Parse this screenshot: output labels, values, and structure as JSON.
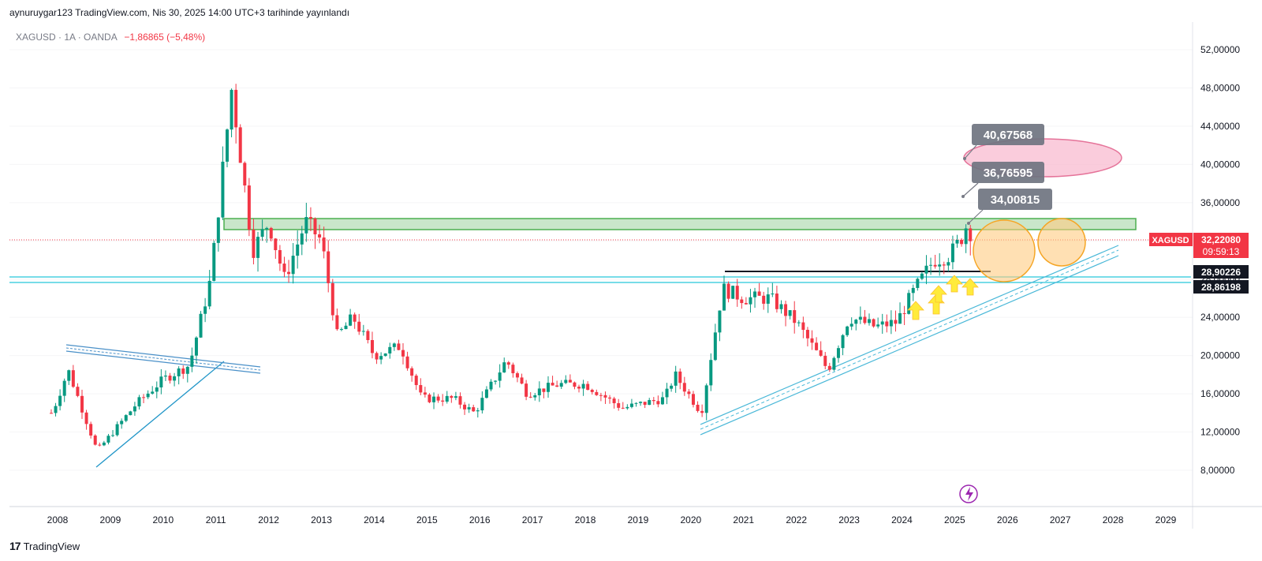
{
  "header": {
    "publish_line": "aynuruygar123 TradingView.com, Nis 30, 2025 14:00 UTC+3 tarihinde yayınlandı"
  },
  "symbol": {
    "name": "XAGUSD · 1A · OANDA",
    "change": "−1,86865 (−5,48%)"
  },
  "footer": {
    "brand": "TradingView"
  },
  "chart_data": {
    "type": "candlestick",
    "symbol": "XAGUSD",
    "y_ticks": [
      "8,00000",
      "12,00000",
      "16,00000",
      "20,00000",
      "24,00000",
      "28,00000",
      "32,00000",
      "36,00000",
      "40,00000",
      "44,00000",
      "48,00000",
      "52,00000"
    ],
    "x_ticks": [
      "2008",
      "2009",
      "2010",
      "2011",
      "2012",
      "2013",
      "2014",
      "2015",
      "2016",
      "2017",
      "2018",
      "2019",
      "2020",
      "2021",
      "2022",
      "2023",
      "2024",
      "2025",
      "2026",
      "2027",
      "2028",
      "2029"
    ],
    "price_labels": {
      "current_symbol": "XAGUSD",
      "current_price": "32,22080",
      "countdown": "09:59:13",
      "level_1": "28,90226",
      "level_2": "28,86198"
    },
    "target_labels": [
      "40,67568",
      "36,76595",
      "34,00815"
    ],
    "anchors": [
      {
        "year": 2007.9,
        "price": 14.0
      },
      {
        "year": 2008.2,
        "price": 18.5
      },
      {
        "year": 2008.75,
        "price": 10.0
      },
      {
        "year": 2009.5,
        "price": 15.0
      },
      {
        "year": 2010.0,
        "price": 17.5
      },
      {
        "year": 2010.5,
        "price": 19.0
      },
      {
        "year": 2010.9,
        "price": 28.0
      },
      {
        "year": 2011.3,
        "price": 48.0
      },
      {
        "year": 2011.7,
        "price": 31.0
      },
      {
        "year": 2012.0,
        "price": 34.0
      },
      {
        "year": 2012.3,
        "price": 28.0
      },
      {
        "year": 2012.7,
        "price": 34.0
      },
      {
        "year": 2013.0,
        "price": 32.0
      },
      {
        "year": 2013.3,
        "price": 22.0
      },
      {
        "year": 2013.6,
        "price": 24.0
      },
      {
        "year": 2014.0,
        "price": 20.0
      },
      {
        "year": 2014.5,
        "price": 21.0
      },
      {
        "year": 2014.9,
        "price": 15.5
      },
      {
        "year": 2015.5,
        "price": 15.5
      },
      {
        "year": 2015.9,
        "price": 14.0
      },
      {
        "year": 2016.5,
        "price": 19.5
      },
      {
        "year": 2016.9,
        "price": 16.0
      },
      {
        "year": 2017.5,
        "price": 17.0
      },
      {
        "year": 2018.0,
        "price": 17.0
      },
      {
        "year": 2018.7,
        "price": 14.5
      },
      {
        "year": 2019.5,
        "price": 15.5
      },
      {
        "year": 2019.7,
        "price": 18.0
      },
      {
        "year": 2020.2,
        "price": 14.0
      },
      {
        "year": 2020.6,
        "price": 27.0
      },
      {
        "year": 2021.0,
        "price": 26.0
      },
      {
        "year": 2021.5,
        "price": 26.0
      },
      {
        "year": 2022.0,
        "price": 23.5
      },
      {
        "year": 2022.6,
        "price": 18.5
      },
      {
        "year": 2023.0,
        "price": 24.0
      },
      {
        "year": 2023.5,
        "price": 23.0
      },
      {
        "year": 2023.9,
        "price": 23.5
      },
      {
        "year": 2024.2,
        "price": 26.5
      },
      {
        "year": 2024.6,
        "price": 30.0
      },
      {
        "year": 2024.9,
        "price": 30.5
      },
      {
        "year": 2025.1,
        "price": 32.0
      },
      {
        "year": 2025.25,
        "price": 34.0
      },
      {
        "year": 2025.33,
        "price": 32.2
      }
    ]
  }
}
